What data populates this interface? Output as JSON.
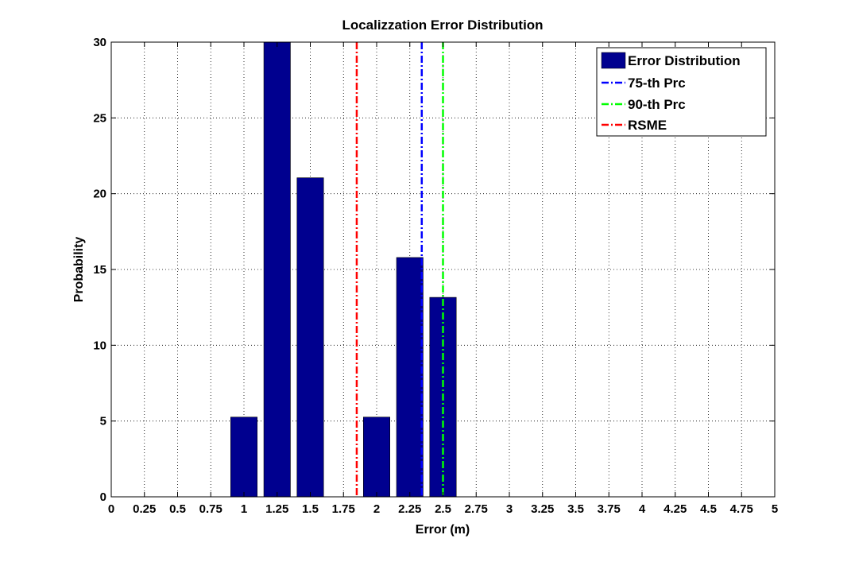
{
  "chart_data": {
    "type": "bar",
    "title": "Localizzation Error Distribution",
    "xlabel": "Error (m)",
    "ylabel": "Probability",
    "xlim": [
      0,
      5
    ],
    "ylim": [
      0,
      30
    ],
    "grid": true,
    "x_ticks": [
      0,
      0.25,
      0.5,
      0.75,
      1,
      1.25,
      1.5,
      1.75,
      2,
      2.25,
      2.5,
      2.75,
      3,
      3.25,
      3.5,
      3.75,
      4,
      4.25,
      4.5,
      4.75,
      5
    ],
    "x_tick_labels": [
      "0",
      "0.25",
      "0.5",
      "0.75",
      "1",
      "1.25",
      "1.5",
      "1.75",
      "2",
      "2.25",
      "2.5",
      "2.75",
      "3",
      "3.25",
      "3.5",
      "3.75",
      "4",
      "4.25",
      "4.5",
      "4.75",
      "5"
    ],
    "y_ticks": [
      0,
      5,
      10,
      15,
      20,
      25,
      30
    ],
    "y_tick_labels": [
      "0",
      "5",
      "10",
      "15",
      "20",
      "25",
      "30"
    ],
    "legend_position": "top-right",
    "bars": {
      "name": "Error Distribution",
      "color": "#00008f",
      "bar_width": 0.2,
      "x": [
        1,
        1.25,
        1.5,
        2,
        2.25,
        2.5
      ],
      "values": [
        5.26,
        30,
        21.05,
        5.26,
        15.79,
        13.16
      ]
    },
    "lines": [
      {
        "name": "75-th Prc",
        "x": 2.34,
        "color": "#0000ff"
      },
      {
        "name": "90-th Prc",
        "x": 2.5,
        "color": "#00ff00"
      },
      {
        "name": "RSME",
        "x": 1.85,
        "color": "#ff0000"
      }
    ]
  }
}
